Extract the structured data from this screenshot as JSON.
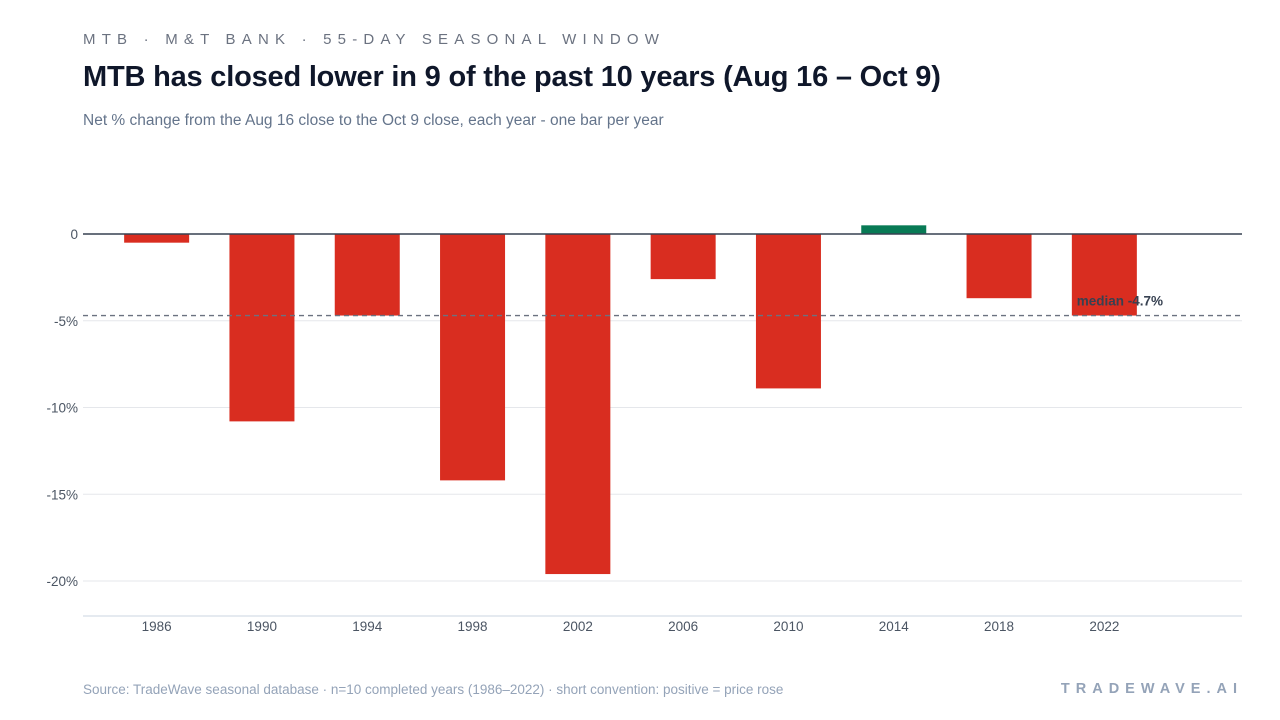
{
  "header": {
    "eyebrow": "MTB · M&T BANK · 55-DAY SEASONAL WINDOW",
    "title": "MTB has closed lower in 9 of the past 10 years (Aug 16 – Oct 9)",
    "subtitle": "Net % change from the Aug 16 close to the Oct 9 close, each year - one bar per year"
  },
  "footer": {
    "source": "Source: TradeWave seasonal database · n=10 completed years (1986–2022) · short convention: positive = price rose",
    "brand": "TRADEWAVE.AI"
  },
  "colors": {
    "negative": "#d92d20",
    "positive": "#087a55",
    "zero_line": "#374151",
    "grid": "#e5e7eb",
    "median_line": "#6b7280"
  },
  "chart_data": {
    "type": "bar",
    "title": "MTB has closed lower in 9 of the past 10 years (Aug 16 – Oct 9)",
    "subtitle": "Net % change from the Aug 16 close to the Oct 9 close, each year - one bar per year",
    "categories": [
      "1986",
      "1990",
      "1994",
      "1998",
      "2002",
      "2006",
      "2010",
      "2014",
      "2018",
      "2022"
    ],
    "values": [
      -0.5,
      -10.8,
      -4.7,
      -14.2,
      -19.6,
      -2.6,
      -8.9,
      0.5,
      -3.7,
      -4.7
    ],
    "xlabel": "",
    "ylabel": "",
    "ylim": [
      -22,
      5
    ],
    "yticks": [
      0,
      -5,
      -10,
      -15,
      -20
    ],
    "ytick_labels": [
      "0",
      "-5%",
      "-10%",
      "-15%",
      "-20%"
    ],
    "grid": true,
    "legend": "none",
    "median": {
      "value": -4.7,
      "label": "median -4.7%"
    }
  }
}
